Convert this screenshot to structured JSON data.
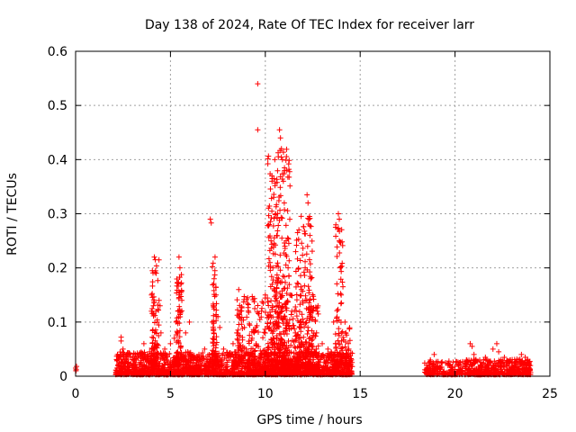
{
  "chart_data": {
    "type": "scatter",
    "title": "Day 138 of 2024, Rate Of TEC Index for receiver larr",
    "xlabel": "GPS time / hours",
    "ylabel": "ROTI / TECUs",
    "xlim": [
      0,
      25
    ],
    "ylim": [
      0,
      0.6
    ],
    "x_ticks": [
      "0",
      "5",
      "10",
      "15",
      "20",
      "25"
    ],
    "y_ticks": [
      "0",
      "0.1",
      "0.2",
      "0.3",
      "0.4",
      "0.5",
      "0.6"
    ],
    "grid": true,
    "marker": "+",
    "marker_color": "#ff0000",
    "series": [
      {
        "name": "ROTI",
        "points": [
          [
            0.0,
            0.015
          ],
          [
            0.03,
            0.012
          ],
          [
            0.05,
            0.018
          ],
          [
            0.02,
            0.01
          ],
          [
            2.2,
            0.03
          ],
          [
            2.4,
            0.072
          ],
          [
            2.4,
            0.065
          ],
          [
            2.5,
            0.05
          ],
          [
            2.7,
            0.04
          ],
          [
            2.9,
            0.035
          ],
          [
            3.6,
            0.03
          ],
          [
            3.6,
            0.06
          ],
          [
            3.9,
            0.045
          ],
          [
            4.0,
            0.12
          ],
          [
            4.0,
            0.15
          ],
          [
            4.1,
            0.13
          ],
          [
            4.15,
            0.22
          ],
          [
            4.2,
            0.215
          ],
          [
            4.25,
            0.19
          ],
          [
            4.3,
            0.1
          ],
          [
            4.4,
            0.14
          ],
          [
            4.45,
            0.13
          ],
          [
            4.5,
            0.08
          ],
          [
            4.7,
            0.05
          ],
          [
            5.0,
            0.06
          ],
          [
            5.2,
            0.07
          ],
          [
            5.3,
            0.1
          ],
          [
            5.4,
            0.12
          ],
          [
            5.45,
            0.22
          ],
          [
            5.5,
            0.2
          ],
          [
            5.55,
            0.17
          ],
          [
            5.6,
            0.14
          ],
          [
            5.8,
            0.08
          ],
          [
            6.0,
            0.1
          ],
          [
            6.2,
            0.03
          ],
          [
            6.5,
            0.04
          ],
          [
            6.8,
            0.05
          ],
          [
            7.1,
            0.29
          ],
          [
            7.15,
            0.283
          ],
          [
            7.2,
            0.1
          ],
          [
            7.3,
            0.18
          ],
          [
            7.35,
            0.22
          ],
          [
            7.4,
            0.15
          ],
          [
            7.5,
            0.11
          ],
          [
            7.6,
            0.09
          ],
          [
            7.8,
            0.05
          ],
          [
            8.0,
            0.04
          ],
          [
            8.3,
            0.06
          ],
          [
            8.5,
            0.08
          ],
          [
            8.6,
            0.16
          ],
          [
            8.7,
            0.12
          ],
          [
            8.9,
            0.09
          ],
          [
            9.0,
            0.05
          ],
          [
            9.3,
            0.07
          ],
          [
            9.5,
            0.09
          ],
          [
            9.6,
            0.54
          ],
          [
            9.6,
            0.455
          ],
          [
            9.8,
            0.12
          ],
          [
            10.0,
            0.15
          ],
          [
            10.2,
            0.28
          ],
          [
            10.3,
            0.25
          ],
          [
            10.35,
            0.36
          ],
          [
            10.4,
            0.2
          ],
          [
            10.5,
            0.4
          ],
          [
            10.55,
            0.3
          ],
          [
            10.6,
            0.26
          ],
          [
            10.7,
            0.18
          ],
          [
            10.75,
            0.455
          ],
          [
            10.8,
            0.44
          ],
          [
            10.85,
            0.42
          ],
          [
            10.9,
            0.4
          ],
          [
            10.95,
            0.36
          ],
          [
            11.0,
            0.32
          ],
          [
            11.1,
            0.25
          ],
          [
            11.2,
            0.2
          ],
          [
            11.3,
            0.15
          ],
          [
            11.4,
            0.12
          ],
          [
            11.6,
            0.23
          ],
          [
            11.7,
            0.265
          ],
          [
            11.9,
            0.16
          ],
          [
            12.0,
            0.1
          ],
          [
            12.1,
            0.2
          ],
          [
            12.2,
            0.335
          ],
          [
            12.25,
            0.32
          ],
          [
            12.3,
            0.29
          ],
          [
            12.35,
            0.26
          ],
          [
            12.4,
            0.18
          ],
          [
            12.5,
            0.12
          ],
          [
            12.7,
            0.08
          ],
          [
            13.0,
            0.06
          ],
          [
            13.3,
            0.05
          ],
          [
            13.6,
            0.1
          ],
          [
            13.7,
            0.06
          ],
          [
            13.85,
            0.3
          ],
          [
            13.9,
            0.29
          ],
          [
            13.9,
            0.25
          ],
          [
            13.95,
            0.2
          ],
          [
            14.0,
            0.15
          ],
          [
            14.2,
            0.1
          ],
          [
            14.4,
            0.05
          ],
          [
            14.5,
            0.03
          ],
          [
            18.5,
            0.02
          ],
          [
            18.7,
            0.03
          ],
          [
            18.9,
            0.04
          ],
          [
            19.0,
            0.025
          ],
          [
            19.2,
            0.015
          ],
          [
            19.5,
            0.025
          ],
          [
            19.7,
            0.02
          ],
          [
            20.0,
            0.018
          ],
          [
            20.2,
            0.022
          ],
          [
            20.6,
            0.03
          ],
          [
            20.8,
            0.06
          ],
          [
            20.9,
            0.055
          ],
          [
            21.0,
            0.04
          ],
          [
            21.3,
            0.03
          ],
          [
            21.6,
            0.035
          ],
          [
            22.0,
            0.05
          ],
          [
            22.2,
            0.06
          ],
          [
            22.3,
            0.045
          ],
          [
            22.6,
            0.035
          ],
          [
            22.9,
            0.03
          ],
          [
            23.2,
            0.025
          ],
          [
            23.5,
            0.04
          ],
          [
            23.7,
            0.035
          ],
          [
            23.9,
            0.025
          ]
        ],
        "baseline_segments": [
          {
            "x_start": 2.1,
            "x_end": 14.6,
            "y_min": 0.003,
            "y_max": 0.045,
            "count": 2000
          },
          {
            "x_start": 9.0,
            "x_end": 12.8,
            "y_min": 0.005,
            "y_max": 0.15,
            "count": 500
          },
          {
            "x_start": 18.4,
            "x_end": 20.4,
            "y_min": 0.003,
            "y_max": 0.028,
            "count": 180
          },
          {
            "x_start": 20.5,
            "x_end": 24.0,
            "y_min": 0.003,
            "y_max": 0.032,
            "count": 450
          }
        ],
        "spikes": [
          {
            "x_start": 4.0,
            "x_end": 4.4,
            "y_max": 0.22,
            "count": 80
          },
          {
            "x_start": 5.3,
            "x_end": 5.6,
            "y_max": 0.2,
            "count": 70
          },
          {
            "x_start": 7.2,
            "x_end": 7.45,
            "y_max": 0.21,
            "count": 60
          },
          {
            "x_start": 8.5,
            "x_end": 8.9,
            "y_max": 0.15,
            "count": 50
          },
          {
            "x_start": 10.1,
            "x_end": 11.3,
            "y_max": 0.42,
            "count": 250
          },
          {
            "x_start": 11.6,
            "x_end": 12.5,
            "y_max": 0.3,
            "count": 120
          },
          {
            "x_start": 13.7,
            "x_end": 14.1,
            "y_max": 0.28,
            "count": 60
          },
          {
            "x_start": 14.0,
            "x_end": 14.5,
            "y_max": 0.09,
            "count": 40
          }
        ]
      }
    ]
  }
}
